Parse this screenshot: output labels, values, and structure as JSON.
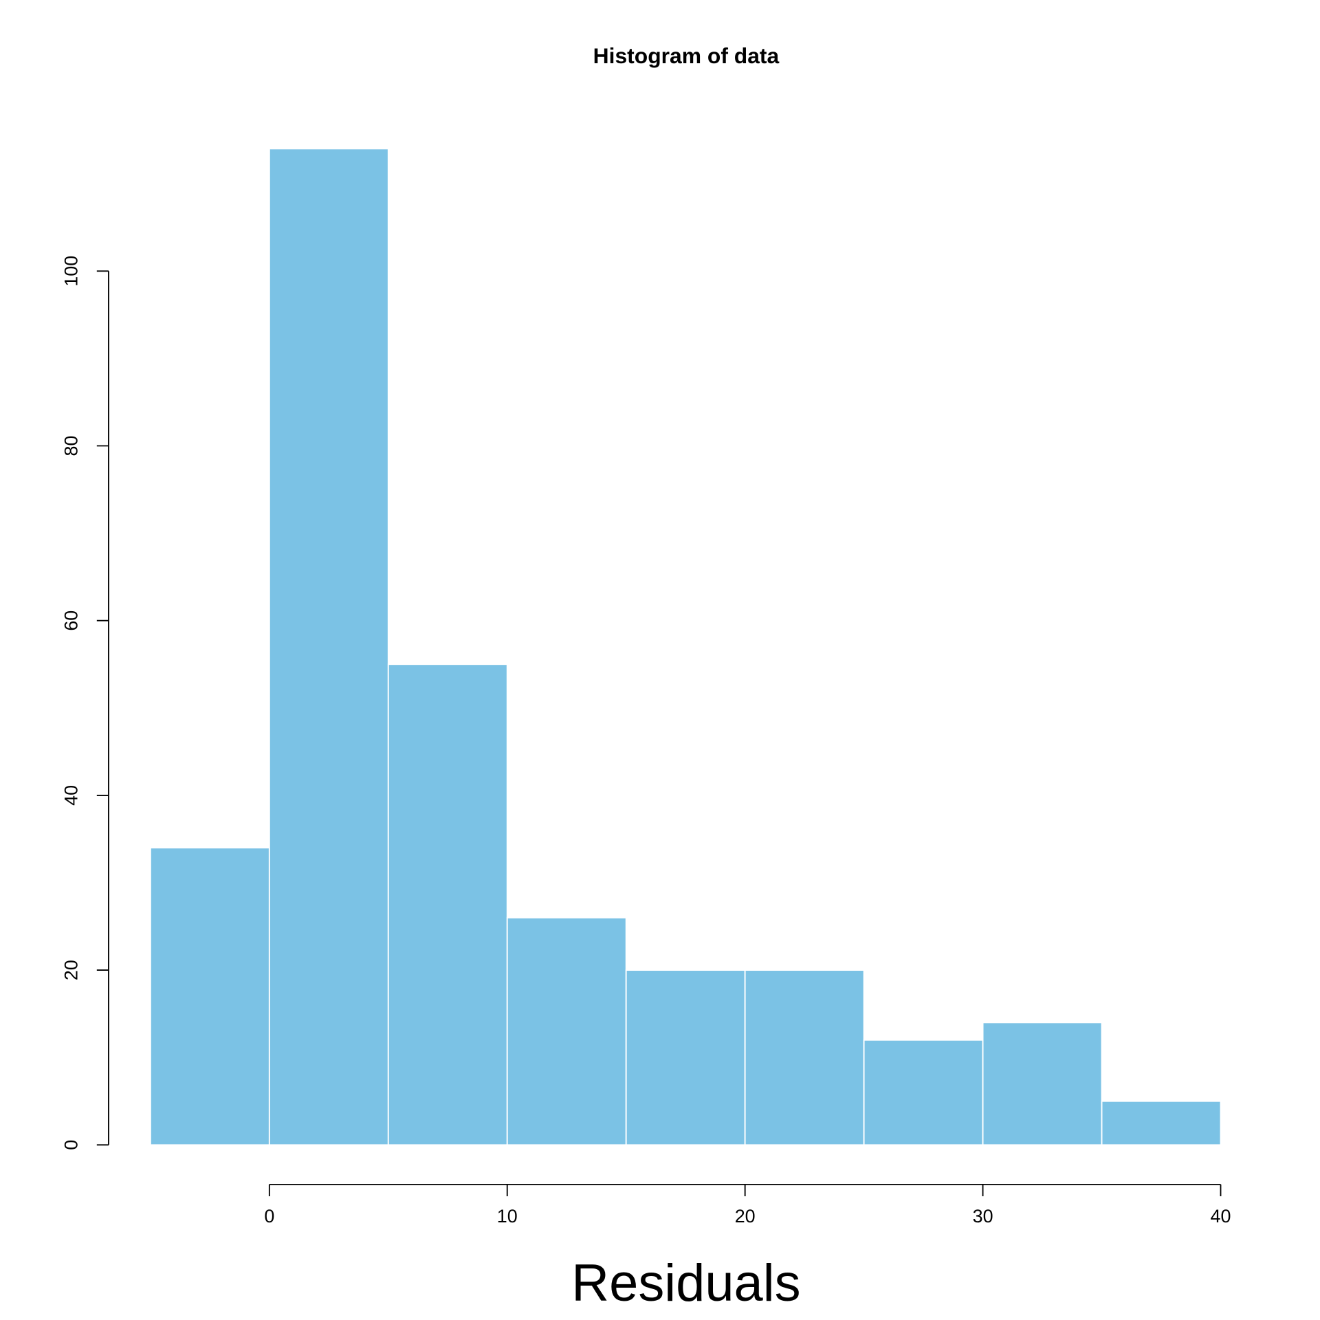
{
  "chart_data": {
    "type": "bar",
    "title": "Histogram of data",
    "xlabel": "Residuals",
    "ylabel": "",
    "bin_edges": [
      -5,
      0,
      5,
      10,
      15,
      20,
      25,
      30,
      35,
      40
    ],
    "values": [
      34,
      114,
      55,
      26,
      20,
      20,
      12,
      14,
      5
    ],
    "xticks": [
      0,
      10,
      20,
      30,
      40
    ],
    "yticks": [
      0,
      20,
      40,
      60,
      80,
      100
    ],
    "xlim": [
      -5,
      40
    ],
    "ylim": [
      0,
      114
    ],
    "grid": false,
    "bar_color": "#7BC2E5",
    "edge_color": "#FFFFFF"
  }
}
